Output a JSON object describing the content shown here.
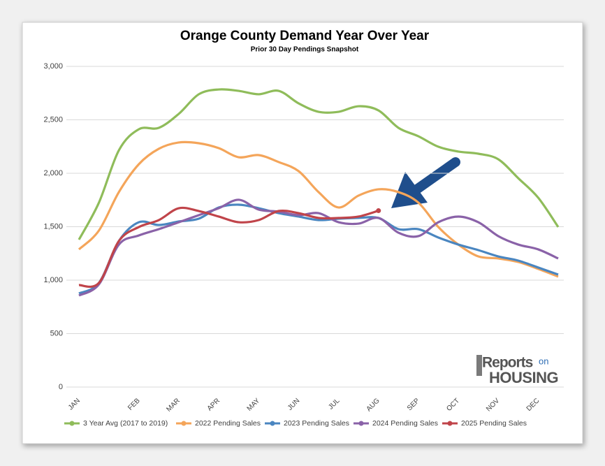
{
  "chart_data": {
    "type": "line",
    "title": "Orange County Demand Year Over Year",
    "subtitle": "Prior 30 Day Pendings Snapshot",
    "categories": [
      "JAN",
      null,
      null,
      "FEB",
      null,
      "MAR",
      null,
      "APR",
      null,
      "MAY",
      null,
      "JUN",
      null,
      "JUL",
      null,
      "AUG",
      null,
      "SEP",
      null,
      "OCT",
      null,
      "NOV",
      null,
      "DEC",
      null
    ],
    "ylim": [
      0,
      3000
    ],
    "yticks": [
      0,
      500,
      {
        "value": 1000,
        "label": "1,000"
      },
      {
        "value": 1500,
        "label": "1,500"
      },
      {
        "value": 2000,
        "label": "2,000"
      },
      {
        "value": 2500,
        "label": "2,500"
      },
      {
        "value": 3000,
        "label": "3,000"
      }
    ],
    "grid": true,
    "legend": "bottom",
    "series": [
      {
        "name": "3 Year Avg (2017 to 2019)",
        "color": "#8fbc5a",
        "values": [
          1379,
          1725,
          2215,
          2412,
          2425,
          2556,
          2739,
          2784,
          2771,
          2739,
          2771,
          2654,
          2575,
          2575,
          2627,
          2588,
          2425,
          2346,
          2248,
          2203,
          2183,
          2131,
          1954,
          1771,
          1497
        ]
      },
      {
        "name": "2022 Pending Sales",
        "color": "#f4a55a",
        "values": [
          1288,
          1464,
          1824,
          2085,
          2229,
          2288,
          2281,
          2235,
          2150,
          2170,
          2105,
          2020,
          1824,
          1680,
          1791,
          1850,
          1824,
          1725,
          1497,
          1333,
          1222,
          1203,
          1170,
          1105,
          1033
        ]
      },
      {
        "name": "2023 Pending Sales",
        "color": "#4a86c0",
        "values": [
          876,
          974,
          1366,
          1542,
          1516,
          1549,
          1575,
          1680,
          1706,
          1673,
          1627,
          1595,
          1562,
          1575,
          1582,
          1582,
          1477,
          1477,
          1399,
          1333,
          1281,
          1222,
          1183,
          1118,
          1052
        ]
      },
      {
        "name": "2024 Pending Sales",
        "color": "#8a62a8",
        "values": [
          856,
          961,
          1333,
          1418,
          1477,
          1542,
          1608,
          1673,
          1752,
          1660,
          1641,
          1608,
          1627,
          1542,
          1529,
          1582,
          1444,
          1412,
          1542,
          1595,
          1542,
          1412,
          1333,
          1288,
          1203
        ]
      },
      {
        "name": "2025 Pending Sales",
        "color": "#c0444a",
        "values": [
          954,
          974,
          1366,
          1497,
          1562,
          1673,
          1647,
          1595,
          1542,
          1562,
          1647,
          1627,
          1582,
          1582,
          1595,
          1650,
          null,
          null,
          null,
          null,
          null,
          null,
          null,
          null,
          null
        ]
      }
    ],
    "logo": {
      "brand": "Reports",
      "small": "on",
      "big": "HOUSING"
    }
  }
}
